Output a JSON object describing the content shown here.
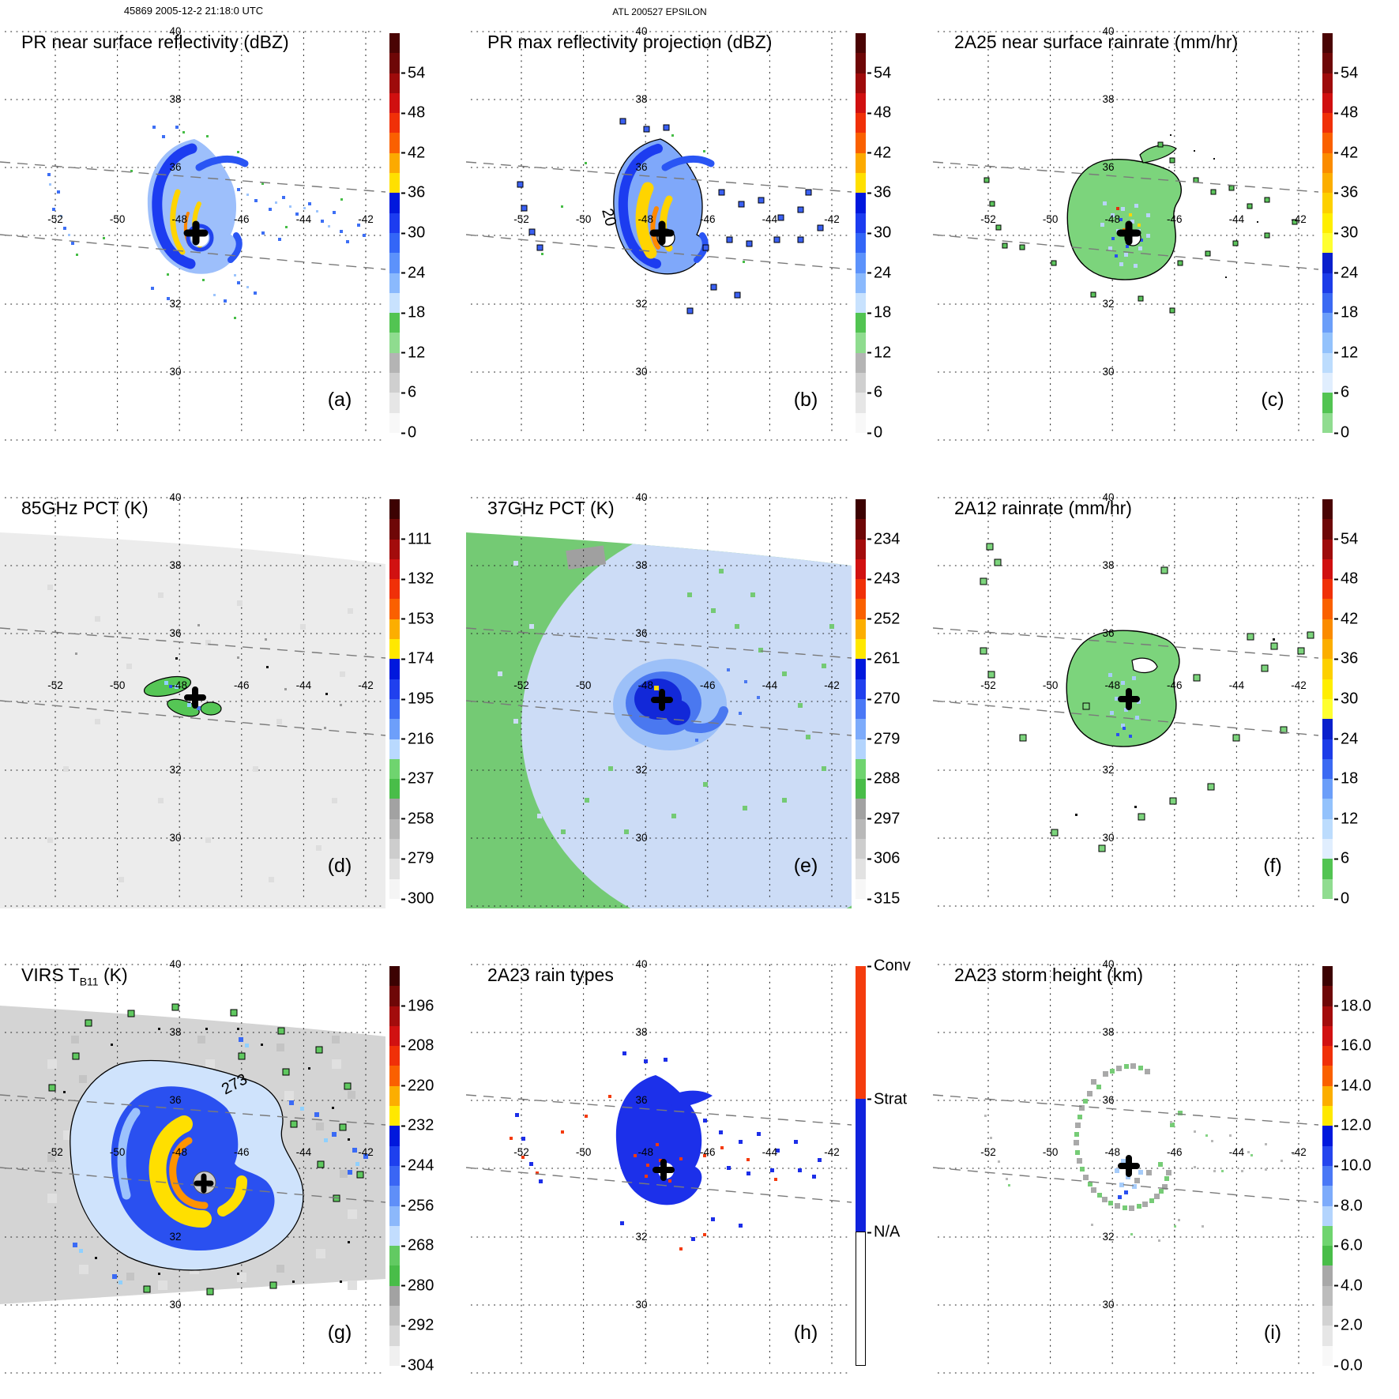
{
  "figure": {
    "supertitle_left": "45869 2005-12-2 21:18:0 UTC",
    "supertitle_center": "ATL 200527 EPSILON"
  },
  "axes": {
    "lon_labels": [
      "-52",
      "-50",
      "-48",
      "-46",
      "-44",
      "-42"
    ],
    "lat_labels": [
      "40",
      "38",
      "36",
      "32",
      "30"
    ],
    "gridline_lats": [
      40,
      38,
      36,
      34,
      32,
      30,
      28
    ]
  },
  "colorbars": {
    "dbz": {
      "units": "dBZ",
      "ticks": [
        "54",
        "48",
        "42",
        "36",
        "30",
        "24",
        "18",
        "12",
        "6",
        "0"
      ],
      "colors": [
        "#4a0404",
        "#6e0707",
        "#9e0b0b",
        "#d01010",
        "#f03008",
        "#fa6000",
        "#fcaa00",
        "#ffe000",
        "#0018dd",
        "#1c3cf0",
        "#3366f7",
        "#5c92fb",
        "#8ab9fd",
        "#c8e2fe",
        "#52c452",
        "#8fdc8f",
        "#b4b4b4",
        "#cfcfcf",
        "#e6e6e6",
        "#f8f8f8"
      ]
    },
    "rain": {
      "units": "mm/hr",
      "ticks": [
        "54",
        "48",
        "42",
        "36",
        "30",
        "24",
        "18",
        "12",
        "6",
        "0"
      ],
      "colors": [
        "#4a0404",
        "#6e0707",
        "#9e0b0b",
        "#d01010",
        "#f03008",
        "#fa6000",
        "#fb8b00",
        "#fcae00",
        "#fdd000",
        "#ffee00",
        "#ffff30",
        "#0a20cc",
        "#1c3ce8",
        "#3b6af3",
        "#6b9ef9",
        "#93c2fc",
        "#bcdcfd",
        "#e0eefe",
        "#52c452",
        "#90dc90"
      ]
    },
    "pct85": {
      "units": "K",
      "ticks": [
        "111",
        "132",
        "153",
        "174",
        "195",
        "216",
        "237",
        "258",
        "279",
        "300"
      ],
      "colors": [
        "#3c0202",
        "#6e0707",
        "#a30c0c",
        "#d11111",
        "#f03008",
        "#fa6000",
        "#fcae00",
        "#ffe800",
        "#0018dd",
        "#2040ee",
        "#3f6ef5",
        "#6d9ffa",
        "#b9d9fe",
        "#6fd46f",
        "#49bd49",
        "#a2a2a2",
        "#b8b8b8",
        "#cdcdcd",
        "#e2e2e2",
        "#f5f5f5"
      ]
    },
    "pct37": {
      "units": "K",
      "ticks": [
        "234",
        "243",
        "252",
        "261",
        "270",
        "279",
        "288",
        "297",
        "306",
        "315"
      ],
      "colors": [
        "#3c0202",
        "#6e0707",
        "#a30c0c",
        "#d11111",
        "#f03008",
        "#fa6000",
        "#fcae00",
        "#ffe800",
        "#0018dd",
        "#2040ee",
        "#4a78f6",
        "#7dabfb",
        "#b3d4fd",
        "#6fd46f",
        "#49bd49",
        "#a2a2a2",
        "#b8b8b8",
        "#cdcdcd",
        "#e2e2e2",
        "#f7f7f7"
      ]
    },
    "virs": {
      "units": "K",
      "ticks": [
        "196",
        "208",
        "220",
        "232",
        "244",
        "256",
        "268",
        "280",
        "292",
        "304"
      ],
      "colors": [
        "#3c0202",
        "#6e0707",
        "#a30c0c",
        "#d11111",
        "#f03008",
        "#fa6000",
        "#fcae00",
        "#ffe800",
        "#0018dd",
        "#1e40ee",
        "#3a66f4",
        "#5f8ff8",
        "#8cb8fb",
        "#c2ddfe",
        "#62ca62",
        "#49bd49",
        "#a2a2a2",
        "#c0c0c0",
        "#d8d8d8",
        "#f0f0f0"
      ]
    },
    "height": {
      "units": "km",
      "ticks": [
        "18.0",
        "16.0",
        "14.0",
        "12.0",
        "10.0",
        "8.0",
        "6.0",
        "4.0",
        "2.0",
        "0.0"
      ],
      "colors": [
        "#3c0202",
        "#6e0707",
        "#a30c0c",
        "#d11111",
        "#f03008",
        "#fa6000",
        "#fcae00",
        "#ffe800",
        "#0018dd",
        "#2545ee",
        "#4a78f6",
        "#7dabfb",
        "#b3d4fd",
        "#6fd46f",
        "#49bd49",
        "#a8a8a8",
        "#bcbcbc",
        "#d2d2d2",
        "#e6e6e6",
        "#f8f8f8"
      ]
    },
    "raintype": {
      "units": "",
      "segments": [
        {
          "label": "Conv",
          "color": "#f43c0e"
        },
        {
          "label": "Strat",
          "color": "#1022dd"
        },
        {
          "label": "N/A",
          "color": "#ffffff"
        }
      ]
    }
  },
  "panels": [
    {
      "letter": "(a)",
      "title": "PR near surface reflectivity (dBZ)",
      "cb": "dbz"
    },
    {
      "letter": "(b)",
      "title": "PR max reflectivity projection (dBZ)",
      "cb": "dbz",
      "contour_label": "20"
    },
    {
      "letter": "(c)",
      "title": "2A25 near surface rainrate (mm/hr)",
      "cb": "rain"
    },
    {
      "letter": "(d)",
      "title": "85GHz PCT (K)",
      "cb": "pct85"
    },
    {
      "letter": "(e)",
      "title": "37GHz PCT (K)",
      "cb": "pct37"
    },
    {
      "letter": "(f)",
      "title": "2A12 rainrate (mm/hr)",
      "cb": "rain"
    },
    {
      "letter": "(g)",
      "title_pre": "VIRS T",
      "title_sub": "B11",
      "title_post": " (K)",
      "cb": "virs",
      "contour_label": "273"
    },
    {
      "letter": "(h)",
      "title": "2A23 rain types",
      "cb": "raintype"
    },
    {
      "letter": "(i)",
      "title": "2A23 storm height (km)",
      "cb": "height"
    }
  ],
  "chart_data": [
    {
      "panel": "a",
      "type": "heatmap",
      "title": "PR near surface reflectivity (dBZ)",
      "units": "dBZ",
      "colorbar_ticks": [
        54,
        48,
        42,
        36,
        30,
        24,
        18,
        12,
        6,
        0
      ],
      "value_range": [
        0,
        60
      ],
      "lon_range": [
        -53.8,
        -41.4
      ],
      "lat_range": [
        27.9,
        40.1
      ],
      "grid": "dotted"
    },
    {
      "panel": "b",
      "type": "heatmap",
      "title": "PR max reflectivity projection (dBZ)",
      "units": "dBZ",
      "colorbar_ticks": [
        54,
        48,
        42,
        36,
        30,
        24,
        18,
        12,
        6,
        0
      ],
      "value_range": [
        0,
        60
      ],
      "contour_labels": [
        20
      ],
      "lon_range": [
        -53.8,
        -41.4
      ],
      "lat_range": [
        27.9,
        40.1
      ],
      "grid": "dotted"
    },
    {
      "panel": "c",
      "type": "heatmap",
      "title": "2A25 near surface rainrate (mm/hr)",
      "units": "mm/hr",
      "colorbar_ticks": [
        54,
        48,
        42,
        36,
        30,
        24,
        18,
        12,
        6,
        0
      ],
      "value_range": [
        0,
        60
      ],
      "lon_range": [
        -53.8,
        -41.4
      ],
      "lat_range": [
        27.9,
        40.1
      ],
      "grid": "dotted"
    },
    {
      "panel": "d",
      "type": "heatmap",
      "title": "85GHz PCT (K)",
      "units": "K",
      "colorbar_ticks": [
        111,
        132,
        153,
        174,
        195,
        216,
        237,
        258,
        279,
        300
      ],
      "value_range": [
        90,
        300
      ],
      "lon_range": [
        -53.8,
        -41.4
      ],
      "lat_range": [
        27.9,
        40.1
      ],
      "grid": "dotted"
    },
    {
      "panel": "e",
      "type": "heatmap",
      "title": "37GHz PCT (K)",
      "units": "K",
      "colorbar_ticks": [
        234,
        243,
        252,
        261,
        270,
        279,
        288,
        297,
        306,
        315
      ],
      "value_range": [
        225,
        315
      ],
      "lon_range": [
        -53.8,
        -41.4
      ],
      "lat_range": [
        27.9,
        40.1
      ],
      "grid": "dotted"
    },
    {
      "panel": "f",
      "type": "heatmap",
      "title": "2A12 rainrate (mm/hr)",
      "units": "mm/hr",
      "colorbar_ticks": [
        54,
        48,
        42,
        36,
        30,
        24,
        18,
        12,
        6,
        0
      ],
      "value_range": [
        0,
        60
      ],
      "lon_range": [
        -53.8,
        -41.4
      ],
      "lat_range": [
        27.9,
        40.1
      ],
      "grid": "dotted"
    },
    {
      "panel": "g",
      "type": "heatmap",
      "title": "VIRS T_B11 (K)",
      "units": "K",
      "colorbar_ticks": [
        196,
        208,
        220,
        232,
        244,
        256,
        268,
        280,
        292,
        304
      ],
      "value_range": [
        184,
        304
      ],
      "contour_labels": [
        273
      ],
      "lon_range": [
        -53.8,
        -41.4
      ],
      "lat_range": [
        27.9,
        40.1
      ],
      "grid": "dotted"
    },
    {
      "panel": "h",
      "type": "heatmap",
      "title": "2A23 rain types",
      "units": "",
      "categories": [
        "Conv",
        "Strat",
        "N/A"
      ],
      "lon_range": [
        -53.8,
        -41.4
      ],
      "lat_range": [
        27.9,
        40.1
      ],
      "grid": "dotted"
    },
    {
      "panel": "i",
      "type": "heatmap",
      "title": "2A23 storm height (km)",
      "units": "km",
      "colorbar_ticks": [
        18,
        16,
        14,
        12,
        10,
        8,
        6,
        4,
        2,
        0
      ],
      "value_range": [
        0,
        20
      ],
      "lon_range": [
        -53.8,
        -41.4
      ],
      "lat_range": [
        27.9,
        40.1
      ],
      "grid": "dotted"
    }
  ]
}
